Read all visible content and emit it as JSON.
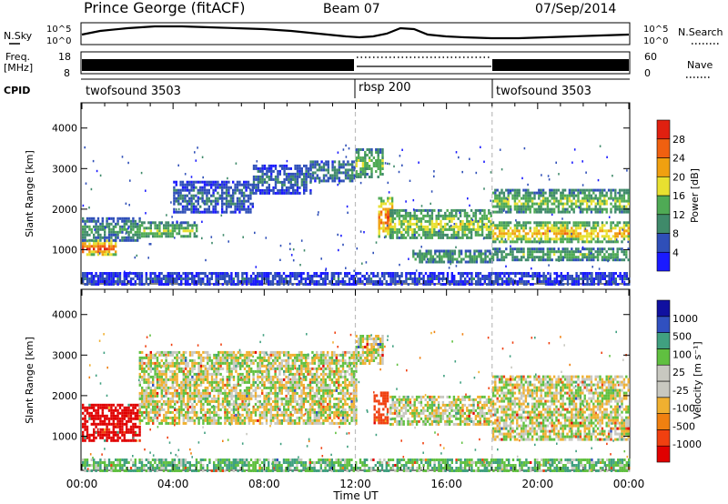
{
  "header": {
    "station": "Prince George (fitACF)",
    "beam": "Beam 07",
    "date": "07/Sep/2014"
  },
  "strips": {
    "nsky_label": "N.Sky",
    "nsky_ticks": [
      "10^5",
      "10^0"
    ],
    "nsearch_label": "N.Search",
    "freq_label_line1": "Freq.",
    "freq_label_line2": "[MHz]",
    "freq_ticks": [
      "18",
      "8"
    ],
    "nave_ticks": [
      "60",
      "0"
    ],
    "nave_label": "Nave",
    "cpid_label": "CPID",
    "cpid_segments": [
      {
        "name": "twofsound 3503",
        "start_hour": 0,
        "end_hour": 12
      },
      {
        "name": "rbsp 200",
        "start_hour": 12,
        "end_hour": 18
      },
      {
        "name": "twofsound 3503",
        "start_hour": 18,
        "end_hour": 24
      }
    ]
  },
  "colors": {
    "power": [
      "#1a1aff",
      "#2f4fb8",
      "#3f8a6a",
      "#4faa55",
      "#e8e030",
      "#f0a010",
      "#f06010",
      "#e02010"
    ],
    "velocity": [
      "#e00000",
      "#f04010",
      "#f08010",
      "#f0b030",
      "#c8c8c0",
      "#c8c8c0",
      "#60c040",
      "#40a080",
      "#3050c0",
      "#1010a0"
    ],
    "grey": "#c8c8c0"
  },
  "chart_data": [
    {
      "type": "heatmap",
      "name": "Power",
      "xlabel": "",
      "ylabel": "Slant Range [km]",
      "xlim": [
        0,
        24
      ],
      "ylim": [
        180,
        4600
      ],
      "xticks": [
        "00:00",
        "04:00",
        "08:00",
        "12:00",
        "16:00",
        "20:00",
        "00:00"
      ],
      "yticks": [
        1000,
        2000,
        3000,
        4000
      ],
      "colorbar_label": "Power [dB]",
      "colorbar_range": [
        0,
        32
      ],
      "colorbar_ticks": [
        4,
        8,
        12,
        16,
        20,
        24,
        28
      ],
      "dashed_lines_hour": [
        12,
        18
      ],
      "echo_bands": [
        {
          "t0": 0.0,
          "t1": 1.5,
          "r0": 880,
          "r1": 1250,
          "level": 28
        },
        {
          "t0": 0.0,
          "t1": 2.5,
          "r0": 1250,
          "r1": 1800,
          "level": 12
        },
        {
          "t0": 2.5,
          "t1": 5.0,
          "r0": 1300,
          "r1": 1700,
          "level": 16
        },
        {
          "t0": 4.0,
          "t1": 7.5,
          "r0": 1900,
          "r1": 2700,
          "level": 8
        },
        {
          "t0": 7.5,
          "t1": 10.0,
          "r0": 2400,
          "r1": 3100,
          "level": 8
        },
        {
          "t0": 10.0,
          "t1": 12.0,
          "r0": 2700,
          "r1": 3200,
          "level": 10
        },
        {
          "t0": 12.0,
          "t1": 13.2,
          "r0": 2800,
          "r1": 3500,
          "level": 16
        },
        {
          "t0": 13.0,
          "t1": 13.6,
          "r0": 1300,
          "r1": 2300,
          "level": 26
        },
        {
          "t0": 13.5,
          "t1": 18.0,
          "r0": 1300,
          "r1": 2000,
          "level": 18
        },
        {
          "t0": 14.5,
          "t1": 18.0,
          "r0": 700,
          "r1": 1000,
          "level": 14
        },
        {
          "t0": 18.0,
          "t1": 24.0,
          "r0": 1900,
          "r1": 2500,
          "level": 16
        },
        {
          "t0": 18.0,
          "t1": 24.0,
          "r0": 1200,
          "r1": 1700,
          "level": 22
        },
        {
          "t0": 18.0,
          "t1": 24.0,
          "r0": 750,
          "r1": 1050,
          "level": 14
        },
        {
          "t0": 0.0,
          "t1": 24.0,
          "r0": 180,
          "r1": 450,
          "level": 6
        }
      ]
    },
    {
      "type": "heatmap",
      "name": "Velocity",
      "xlabel": "Time UT",
      "ylabel": "Slant Range [km]",
      "xlim": [
        0,
        24
      ],
      "ylim": [
        180,
        4600
      ],
      "xticks": [
        "00:00",
        "04:00",
        "08:00",
        "12:00",
        "16:00",
        "20:00",
        "00:00"
      ],
      "yticks": [
        1000,
        2000,
        3000,
        4000
      ],
      "colorbar_label": "Velocity [m s⁻¹]",
      "colorbar_ticks": [
        "1000",
        "500",
        "100",
        "25",
        "-25",
        "-100",
        "-500",
        "-1000"
      ],
      "dashed_lines_hour": [
        12,
        18
      ],
      "echo_bands": [
        {
          "t0": 0.0,
          "t1": 2.5,
          "r0": 880,
          "r1": 1800,
          "vel": -600
        },
        {
          "t0": 2.5,
          "t1": 12.0,
          "r0": 1300,
          "r1": 3100,
          "vel": 0
        },
        {
          "t0": 12.0,
          "t1": 13.2,
          "r0": 2800,
          "r1": 3500,
          "vel": 0
        },
        {
          "t0": 12.8,
          "t1": 13.4,
          "r0": 1300,
          "r1": 2100,
          "vel": -300
        },
        {
          "t0": 13.5,
          "t1": 18.0,
          "r0": 1300,
          "r1": 2000,
          "vel": 0
        },
        {
          "t0": 18.0,
          "t1": 24.0,
          "r0": 900,
          "r1": 2500,
          "vel": 0
        },
        {
          "t0": 0.0,
          "t1": 24.0,
          "r0": 180,
          "r1": 450,
          "vel": 80
        }
      ]
    }
  ]
}
